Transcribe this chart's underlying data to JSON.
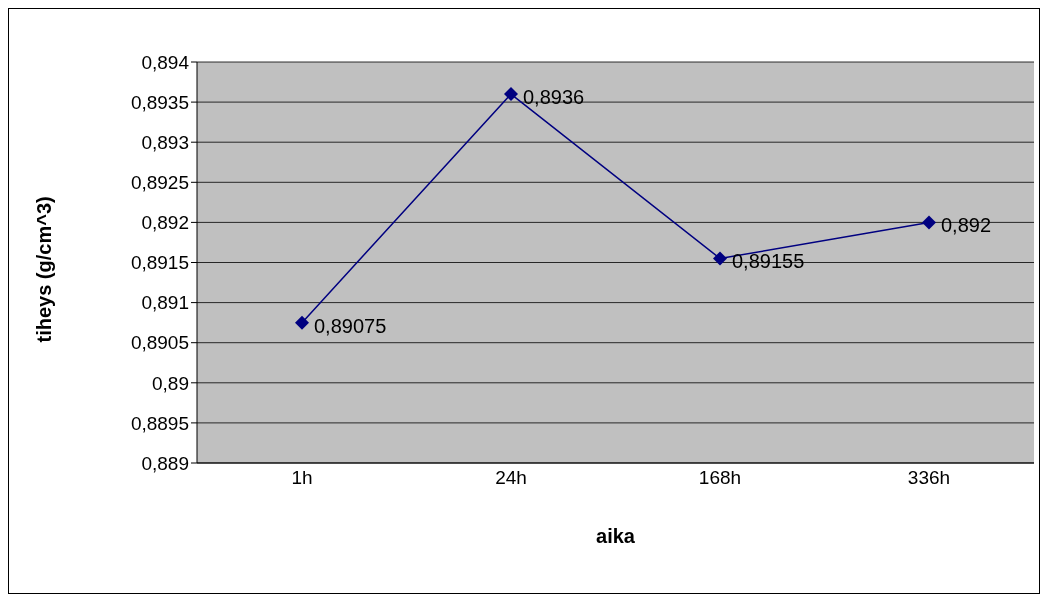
{
  "chart_data": {
    "type": "line",
    "xlabel": "aika",
    "ylabel": "tiheys (g/cm^3)",
    "categories": [
      "1h",
      "24h",
      "168h",
      "336h"
    ],
    "series": [
      {
        "color": "#000080",
        "values": [
          0.89075,
          0.8936,
          0.89155,
          0.892
        ],
        "value_labels": [
          "0,89075",
          "0,8936",
          "0,89155",
          "0,892"
        ]
      }
    ],
    "ylim": [
      0.889,
      0.894
    ],
    "yticks": [
      {
        "value": 0.889,
        "label": "0,889"
      },
      {
        "value": 0.8895,
        "label": "0,8895"
      },
      {
        "value": 0.89,
        "label": "0,89"
      },
      {
        "value": 0.8905,
        "label": "0,8905"
      },
      {
        "value": 0.891,
        "label": "0,891"
      },
      {
        "value": 0.8915,
        "label": "0,8915"
      },
      {
        "value": 0.892,
        "label": "0,892"
      },
      {
        "value": 0.8925,
        "label": "0,8925"
      },
      {
        "value": 0.893,
        "label": "0,893"
      },
      {
        "value": 0.8935,
        "label": "0,8935"
      },
      {
        "value": 0.894,
        "label": "0,894"
      }
    ],
    "grid": "y",
    "legend": false,
    "marker": "diamond",
    "line_style": "solid"
  }
}
